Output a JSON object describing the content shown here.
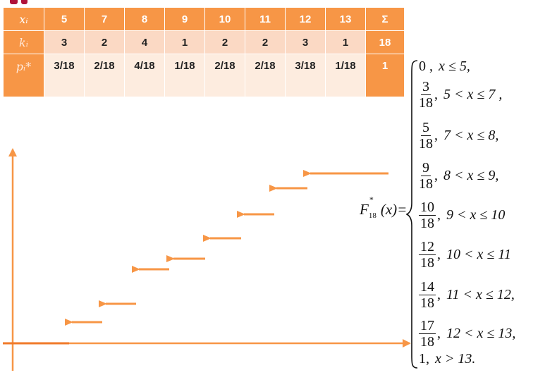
{
  "table": {
    "rows": [
      {
        "head": "xᵢ",
        "cells": [
          "5",
          "7",
          "8",
          "9",
          "10",
          "11",
          "12",
          "13"
        ],
        "sum": "Σ"
      },
      {
        "head": "kᵢ",
        "cells": [
          "3",
          "2",
          "4",
          "1",
          "2",
          "2",
          "3",
          "1"
        ],
        "sum": "18"
      },
      {
        "head": "pᵢ*",
        "cells": [
          "3/18",
          "2/18",
          "4/18",
          "1/18",
          "2/18",
          "2/18",
          "3/18",
          "1/18"
        ],
        "sum": "1"
      }
    ]
  },
  "function": {
    "name": "F",
    "subscript": "18",
    "superscript": "*",
    "argument": "(x)=",
    "cases": [
      {
        "value": "0 ,",
        "num": "",
        "den": "",
        "condition": "x ≤ 5,"
      },
      {
        "value": "",
        "num": "3",
        "den": "18",
        "condition": "5 < x ≤ 7 ,"
      },
      {
        "value": "",
        "num": "5",
        "den": "18",
        "condition": "7 < x ≤ 8,"
      },
      {
        "value": "",
        "num": "9",
        "den": "18",
        "condition": "8 < x ≤ 9,"
      },
      {
        "value": "",
        "num": "10",
        "den": "18",
        "condition": "9 < x ≤ 10"
      },
      {
        "value": "",
        "num": "12",
        "den": "18",
        "condition": "10 < x ≤ 11"
      },
      {
        "value": "",
        "num": "14",
        "den": "18",
        "condition": "11 < x ≤ 12,"
      },
      {
        "value": "",
        "num": "17",
        "den": "18",
        "condition": "12 < x ≤ 13,"
      },
      {
        "value": "1,",
        "num": "",
        "den": "",
        "condition": "x > 13."
      }
    ]
  },
  "colors": {
    "accent": "#f79646",
    "row_light": "#fbd9c4",
    "row_lighter": "#fdecdf",
    "title_mark": "#b0123a"
  }
}
